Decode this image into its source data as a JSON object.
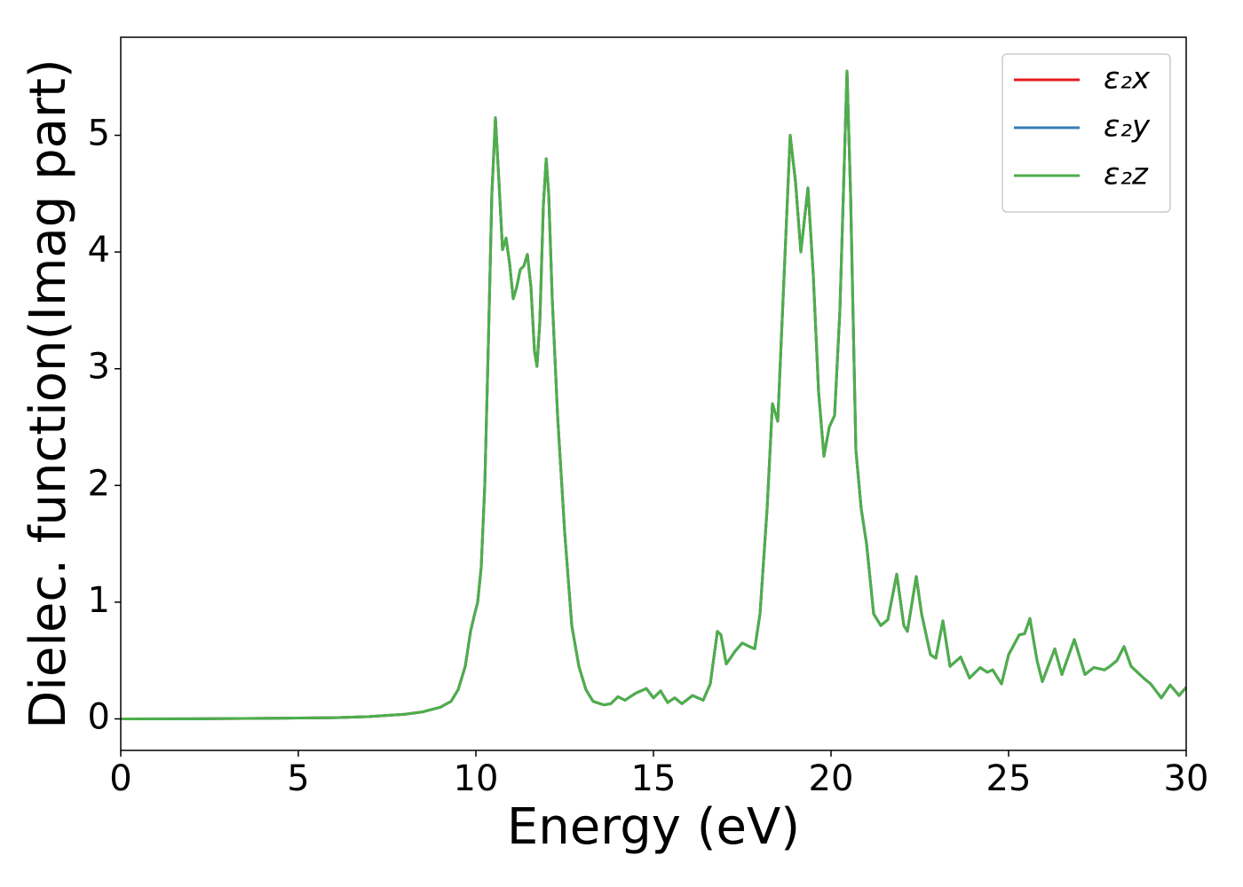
{
  "chart_data": {
    "type": "line",
    "xlabel": "Energy (eV)",
    "ylabel": "Dielec. function(Imag part)",
    "x": [
      0,
      2,
      4,
      6,
      7,
      8,
      8.5,
      9,
      9.3,
      9.5,
      9.7,
      9.85,
      9.95,
      10.05,
      10.15,
      10.25,
      10.35,
      10.45,
      10.55,
      10.65,
      10.75,
      10.85,
      10.95,
      11.05,
      11.15,
      11.25,
      11.35,
      11.45,
      11.55,
      11.65,
      11.72,
      11.8,
      11.9,
      11.98,
      12.05,
      12.15,
      12.3,
      12.5,
      12.7,
      12.9,
      13.1,
      13.3,
      13.6,
      13.8,
      14.0,
      14.2,
      14.5,
      14.8,
      15.0,
      15.2,
      15.4,
      15.6,
      15.8,
      16.1,
      16.4,
      16.6,
      16.8,
      16.9,
      17.05,
      17.3,
      17.5,
      17.7,
      17.85,
      18.0,
      18.2,
      18.35,
      18.5,
      18.65,
      18.85,
      19.0,
      19.15,
      19.35,
      19.5,
      19.65,
      19.8,
      19.95,
      20.1,
      20.25,
      20.45,
      20.55,
      20.7,
      20.85,
      21.0,
      21.2,
      21.4,
      21.6,
      21.85,
      22.05,
      22.15,
      22.4,
      22.55,
      22.8,
      22.95,
      23.15,
      23.35,
      23.65,
      23.9,
      24.2,
      24.4,
      24.55,
      24.8,
      25.0,
      25.3,
      25.45,
      25.6,
      25.8,
      25.95,
      26.3,
      26.5,
      26.85,
      27.15,
      27.4,
      27.7,
      27.85,
      28.05,
      28.25,
      28.45,
      28.8,
      29.0,
      29.3,
      29.55,
      29.8,
      30.0
    ],
    "series": [
      {
        "name": "ε₂x",
        "color": "#e41a1c",
        "values": [
          0,
          0.001,
          0.005,
          0.01,
          0.02,
          0.04,
          0.06,
          0.1,
          0.15,
          0.25,
          0.45,
          0.75,
          0.88,
          1.0,
          1.3,
          2.0,
          3.2,
          4.5,
          5.15,
          4.6,
          4.02,
          4.12,
          3.9,
          3.6,
          3.7,
          3.85,
          3.88,
          3.98,
          3.7,
          3.15,
          3.02,
          3.4,
          4.4,
          4.8,
          4.5,
          3.6,
          2.6,
          1.6,
          0.8,
          0.45,
          0.25,
          0.15,
          0.12,
          0.13,
          0.19,
          0.16,
          0.22,
          0.26,
          0.18,
          0.24,
          0.14,
          0.18,
          0.13,
          0.2,
          0.16,
          0.3,
          0.75,
          0.72,
          0.47,
          0.58,
          0.65,
          0.62,
          0.6,
          0.9,
          1.8,
          2.7,
          2.55,
          3.6,
          5.0,
          4.6,
          4.0,
          4.55,
          3.8,
          2.8,
          2.25,
          2.5,
          2.6,
          3.5,
          5.55,
          4.5,
          2.3,
          1.8,
          1.5,
          0.9,
          0.8,
          0.85,
          1.24,
          0.8,
          0.75,
          1.22,
          0.9,
          0.55,
          0.52,
          0.84,
          0.45,
          0.53,
          0.35,
          0.44,
          0.4,
          0.42,
          0.3,
          0.55,
          0.72,
          0.73,
          0.86,
          0.5,
          0.32,
          0.6,
          0.38,
          0.68,
          0.38,
          0.44,
          0.42,
          0.45,
          0.5,
          0.62,
          0.45,
          0.35,
          0.3,
          0.18,
          0.29,
          0.2,
          0.27
        ]
      },
      {
        "name": "ε₂y",
        "color": "#377eb8",
        "values": [
          0,
          0.001,
          0.005,
          0.01,
          0.02,
          0.04,
          0.06,
          0.1,
          0.15,
          0.25,
          0.45,
          0.75,
          0.88,
          1.0,
          1.3,
          2.0,
          3.2,
          4.5,
          5.15,
          4.6,
          4.02,
          4.12,
          3.9,
          3.6,
          3.7,
          3.85,
          3.88,
          3.98,
          3.7,
          3.15,
          3.02,
          3.4,
          4.4,
          4.8,
          4.5,
          3.6,
          2.6,
          1.6,
          0.8,
          0.45,
          0.25,
          0.15,
          0.12,
          0.13,
          0.19,
          0.16,
          0.22,
          0.26,
          0.18,
          0.24,
          0.14,
          0.18,
          0.13,
          0.2,
          0.16,
          0.3,
          0.75,
          0.72,
          0.47,
          0.58,
          0.65,
          0.62,
          0.6,
          0.9,
          1.8,
          2.7,
          2.55,
          3.6,
          5.0,
          4.6,
          4.0,
          4.55,
          3.8,
          2.8,
          2.25,
          2.5,
          2.6,
          3.5,
          5.55,
          4.5,
          2.3,
          1.8,
          1.5,
          0.9,
          0.8,
          0.85,
          1.24,
          0.8,
          0.75,
          1.22,
          0.9,
          0.55,
          0.52,
          0.84,
          0.45,
          0.53,
          0.35,
          0.44,
          0.4,
          0.42,
          0.3,
          0.55,
          0.72,
          0.73,
          0.86,
          0.5,
          0.32,
          0.6,
          0.38,
          0.68,
          0.38,
          0.44,
          0.42,
          0.45,
          0.5,
          0.62,
          0.45,
          0.35,
          0.3,
          0.18,
          0.29,
          0.2,
          0.27
        ]
      },
      {
        "name": "ε₂z",
        "color": "#4daf4a",
        "values": [
          0,
          0.001,
          0.005,
          0.01,
          0.02,
          0.04,
          0.06,
          0.1,
          0.15,
          0.25,
          0.45,
          0.75,
          0.88,
          1.0,
          1.3,
          2.0,
          3.2,
          4.5,
          5.15,
          4.6,
          4.02,
          4.12,
          3.9,
          3.6,
          3.7,
          3.85,
          3.88,
          3.98,
          3.7,
          3.15,
          3.02,
          3.4,
          4.4,
          4.8,
          4.5,
          3.6,
          2.6,
          1.6,
          0.8,
          0.45,
          0.25,
          0.15,
          0.12,
          0.13,
          0.19,
          0.16,
          0.22,
          0.26,
          0.18,
          0.24,
          0.14,
          0.18,
          0.13,
          0.2,
          0.16,
          0.3,
          0.75,
          0.72,
          0.47,
          0.58,
          0.65,
          0.62,
          0.6,
          0.9,
          1.8,
          2.7,
          2.55,
          3.6,
          5.0,
          4.6,
          4.0,
          4.55,
          3.8,
          2.8,
          2.25,
          2.5,
          2.6,
          3.5,
          5.55,
          4.5,
          2.3,
          1.8,
          1.5,
          0.9,
          0.8,
          0.85,
          1.24,
          0.8,
          0.75,
          1.22,
          0.9,
          0.55,
          0.52,
          0.84,
          0.45,
          0.53,
          0.35,
          0.44,
          0.4,
          0.42,
          0.3,
          0.55,
          0.72,
          0.73,
          0.86,
          0.5,
          0.32,
          0.6,
          0.38,
          0.68,
          0.38,
          0.44,
          0.42,
          0.45,
          0.5,
          0.62,
          0.45,
          0.35,
          0.3,
          0.18,
          0.29,
          0.2,
          0.27
        ]
      }
    ],
    "xlim": [
      0,
      30
    ],
    "xticks": [
      0,
      5,
      10,
      15,
      20,
      25,
      30
    ],
    "ylim": [
      -0.27,
      5.84
    ],
    "yticks": [
      0,
      1,
      2,
      3,
      4,
      5
    ],
    "grid": false,
    "legend": "upper right"
  }
}
